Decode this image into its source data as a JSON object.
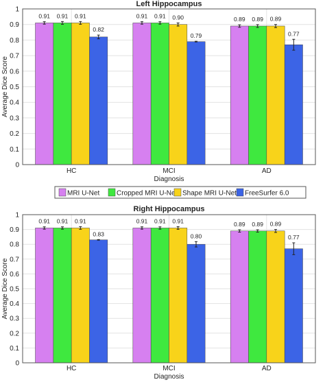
{
  "chart_data": [
    {
      "type": "bar",
      "title": "Left Hippocampus",
      "xlabel": "Diagnosis",
      "ylabel": "Average Dice Score",
      "ylim": [
        0,
        1
      ],
      "yticks": [
        "0",
        "0.1",
        "0.2",
        "0.3",
        "0.4",
        "0.5",
        "0.6",
        "0.7",
        "0.8",
        "0.9",
        "1"
      ],
      "grid": true,
      "legend_position": "below",
      "categories": [
        "HC",
        "MCI",
        "AD"
      ],
      "series": [
        {
          "name": "MRI U-Net",
          "values": [
            0.91,
            0.91,
            0.89
          ],
          "errors": [
            0.008,
            0.008,
            0.008
          ],
          "labels": [
            "0.91",
            "0.91",
            "0.89"
          ]
        },
        {
          "name": "Cropped MRI U-Net",
          "values": [
            0.91,
            0.91,
            0.89
          ],
          "errors": [
            0.009,
            0.008,
            0.009
          ],
          "labels": [
            "0.91",
            "0.91",
            "0.89"
          ]
        },
        {
          "name": "Shape MRI U-Net",
          "values": [
            0.91,
            0.9,
            0.89
          ],
          "errors": [
            0.009,
            0.01,
            0.01
          ],
          "labels": [
            "0.91",
            "0.90",
            "0.89"
          ]
        },
        {
          "name": "FreeSurfer 6.0",
          "values": [
            0.82,
            0.79,
            0.77
          ],
          "errors": [
            0.012,
            0.002,
            0.035
          ],
          "labels": [
            "0.82",
            "0.79",
            "0.77"
          ]
        }
      ]
    },
    {
      "type": "bar",
      "title": "Right Hippocampus",
      "xlabel": "Diagnosis",
      "ylabel": "Average Dice Score",
      "ylim": [
        0,
        1
      ],
      "yticks": [
        "0",
        "0.1",
        "0.2",
        "0.3",
        "0.4",
        "0.5",
        "0.6",
        "0.7",
        "0.8",
        "0.9",
        "1"
      ],
      "grid": true,
      "categories": [
        "HC",
        "MCI",
        "AD"
      ],
      "series": [
        {
          "name": "MRI U-Net",
          "values": [
            0.91,
            0.91,
            0.89
          ],
          "errors": [
            0.008,
            0.008,
            0.008
          ],
          "labels": [
            "0.91",
            "0.91",
            "0.89"
          ]
        },
        {
          "name": "Cropped MRI U-Net",
          "values": [
            0.91,
            0.91,
            0.89
          ],
          "errors": [
            0.008,
            0.008,
            0.008
          ],
          "labels": [
            "0.91",
            "0.91",
            "0.89"
          ]
        },
        {
          "name": "Shape MRI U-Net",
          "values": [
            0.91,
            0.91,
            0.89
          ],
          "errors": [
            0.009,
            0.009,
            0.01
          ],
          "labels": [
            "0.91",
            "0.91",
            "0.89"
          ]
        },
        {
          "name": "FreeSurfer 6.0",
          "values": [
            0.83,
            0.8,
            0.77
          ],
          "errors": [
            0.002,
            0.018,
            0.04
          ],
          "labels": [
            "0.83",
            "0.80",
            "0.77"
          ]
        }
      ]
    }
  ],
  "legend": [
    "MRI U-Net",
    "Cropped MRI U-Net",
    "Shape MRI U-Net",
    "FreeSurfer 6.0"
  ],
  "colors": {
    "MRI U-Net": "#d680f0",
    "Cropped MRI U-Net": "#3fe83f",
    "Shape MRI U-Net": "#f8d31a",
    "FreeSurfer 6.0": "#3c64e6",
    "frame": "#555555",
    "grid": "#e2e2e2"
  }
}
